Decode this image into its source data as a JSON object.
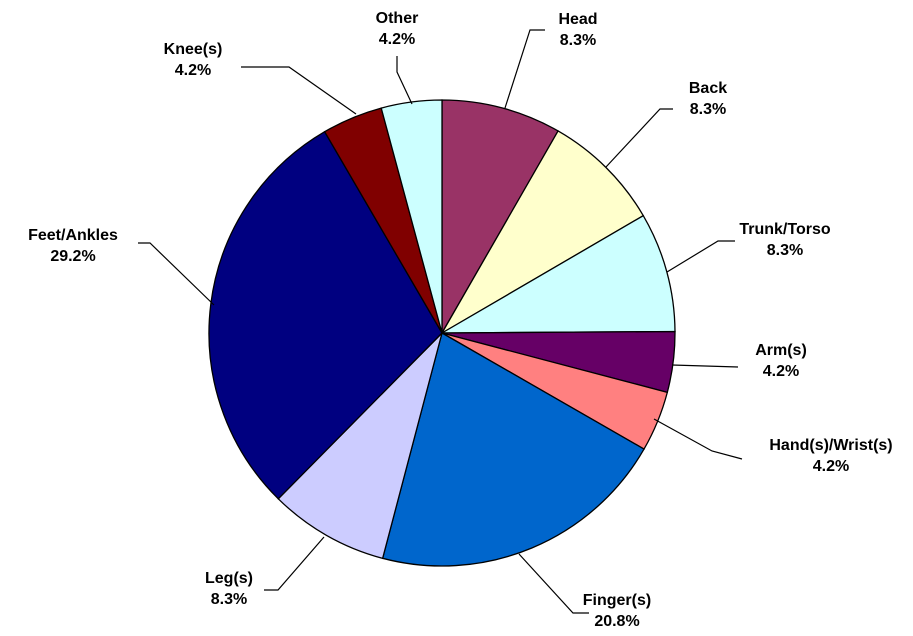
{
  "chart_data": {
    "type": "pie",
    "title": "",
    "start": "12 o'clock",
    "direction": "clockwise",
    "slices": [
      {
        "label": "Head",
        "value": 8.3,
        "value_label": "8.3%",
        "color": "#993366"
      },
      {
        "label": "Back",
        "value": 8.3,
        "value_label": "8.3%",
        "color": "#FFFFCC"
      },
      {
        "label": "Trunk/Torso",
        "value": 8.3,
        "value_label": "8.3%",
        "color": "#CCFFFF"
      },
      {
        "label": "Arm(s)",
        "value": 4.2,
        "value_label": "4.2%",
        "color": "#660066"
      },
      {
        "label": "Hand(s)/Wrist(s)",
        "value": 4.2,
        "value_label": "4.2%",
        "color": "#FF8080"
      },
      {
        "label": "Finger(s)",
        "value": 20.8,
        "value_label": "20.8%",
        "color": "#0066CC"
      },
      {
        "label": "Leg(s)",
        "value": 8.3,
        "value_label": "8.3%",
        "color": "#CCCCFF"
      },
      {
        "label": "Feet/Ankles",
        "value": 29.2,
        "value_label": "29.2%",
        "color": "#000080"
      },
      {
        "label": "Knee(s)",
        "value": 4.2,
        "value_label": "4.2%",
        "color": "#800000"
      },
      {
        "label": "Other",
        "value": 4.2,
        "value_label": "4.2%",
        "color": "#CCFFFF"
      }
    ],
    "legend": "none",
    "data_labels": "outside, with leader lines"
  }
}
